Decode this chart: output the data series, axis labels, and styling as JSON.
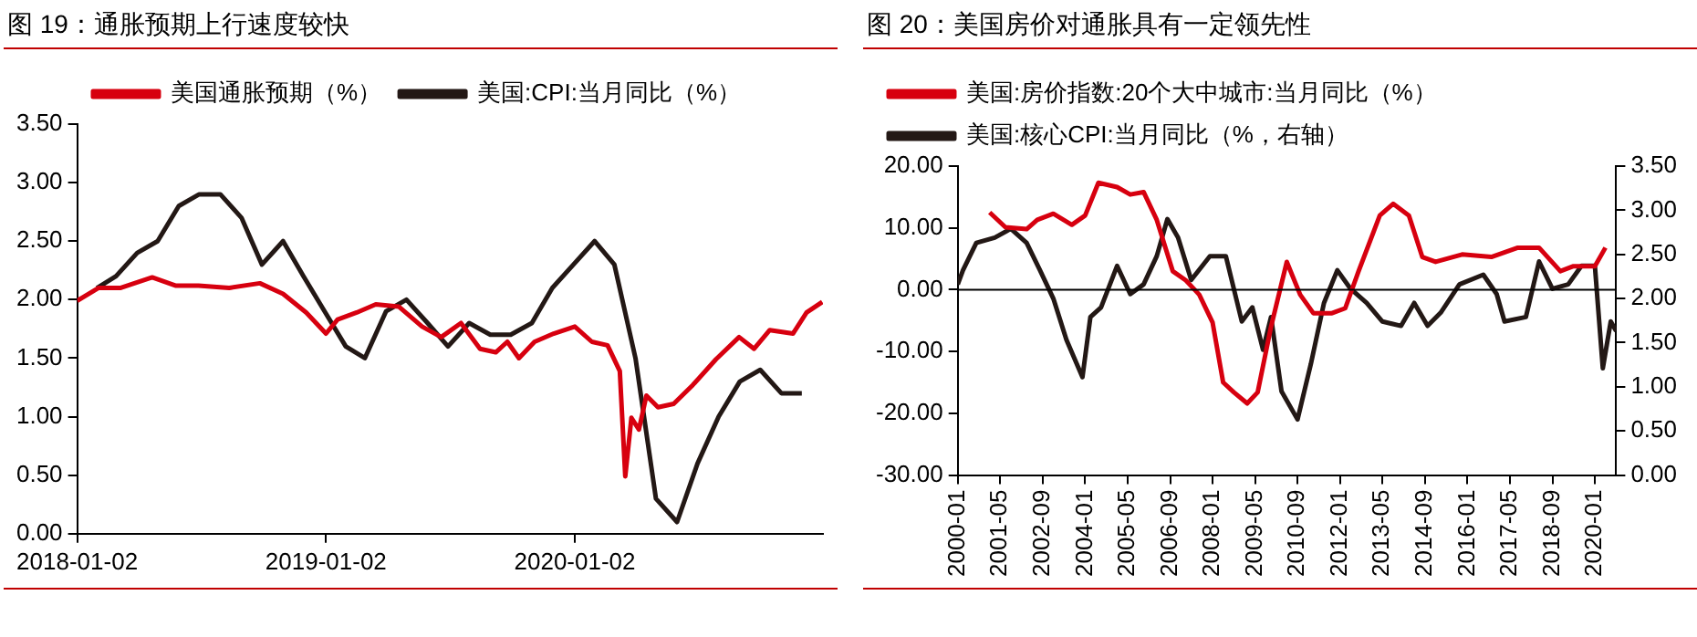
{
  "chart_data": [
    {
      "type": "line",
      "title": "图 19：通胀预期上行速度较快",
      "legend": "top",
      "marker": "none",
      "xlim": [
        "2018-01-02",
        "2020-12-31"
      ],
      "xticks": [
        "2018-01-02",
        "2019-01-02",
        "2020-01-02"
      ],
      "ylim": [
        0,
        3.5
      ],
      "yticks": [
        {
          "value": 0,
          "label": "0.00"
        },
        {
          "value": 0.5,
          "label": "0.50"
        },
        {
          "value": 1,
          "label": "1.00"
        },
        {
          "value": 1.5,
          "label": "1.50"
        },
        {
          "value": 2,
          "label": "2.00"
        },
        {
          "value": 2.5,
          "label": "2.50"
        },
        {
          "value": 3,
          "label": "3.00"
        },
        {
          "value": 3.5,
          "label": "3.50"
        }
      ],
      "series": [
        {
          "name": "美国通胀预期（%）",
          "color": "#d7000f",
          "x": [
            "2018-01-02",
            "2018-02-02",
            "2018-03-06",
            "2018-04-22",
            "2018-05-26",
            "2018-06-29",
            "2018-08-13",
            "2018-09-27",
            "2018-10-31",
            "2018-12-04",
            "2019-01-02",
            "2019-01-19",
            "2019-02-16",
            "2019-03-16",
            "2019-04-19",
            "2019-05-23",
            "2019-06-20",
            "2019-07-19",
            "2019-08-16",
            "2019-09-08",
            "2019-09-25",
            "2019-10-12",
            "2019-11-04",
            "2019-12-02",
            "2020-01-02",
            "2020-01-27",
            "2020-02-19",
            "2020-03-08",
            "2020-03-16",
            "2020-03-25",
            "2020-04-05",
            "2020-04-16",
            "2020-05-03",
            "2020-05-26",
            "2020-06-23",
            "2020-07-27",
            "2020-08-30",
            "2020-09-21",
            "2020-10-14",
            "2020-11-17",
            "2020-12-07",
            "2020-12-30"
          ],
          "values": [
            1.99,
            2.1,
            2.1,
            2.19,
            2.12,
            2.12,
            2.1,
            2.14,
            2.05,
            1.89,
            1.71,
            1.83,
            1.89,
            1.96,
            1.94,
            1.77,
            1.68,
            1.8,
            1.58,
            1.55,
            1.64,
            1.5,
            1.64,
            1.71,
            1.77,
            1.64,
            1.61,
            1.39,
            0.49,
            0.99,
            0.89,
            1.18,
            1.08,
            1.11,
            1.27,
            1.49,
            1.68,
            1.58,
            1.74,
            1.71,
            1.89,
            1.98
          ]
        },
        {
          "name": "美国:CPI:当月同比（%）",
          "color": "#231815",
          "x": [
            "2018-01-31",
            "2018-02-28",
            "2018-03-31",
            "2018-04-30",
            "2018-05-31",
            "2018-06-30",
            "2018-07-31",
            "2018-08-31",
            "2018-09-30",
            "2018-10-31",
            "2018-11-30",
            "2018-12-31",
            "2019-01-31",
            "2019-02-28",
            "2019-03-31",
            "2019-04-30",
            "2019-05-31",
            "2019-06-30",
            "2019-07-31",
            "2019-08-31",
            "2019-09-30",
            "2019-10-31",
            "2019-11-30",
            "2019-12-31",
            "2020-01-31",
            "2020-02-29",
            "2020-03-31",
            "2020-04-30",
            "2020-05-31",
            "2020-06-30",
            "2020-07-31",
            "2020-08-31",
            "2020-09-30",
            "2020-10-31",
            "2020-11-30"
          ],
          "values": [
            2.1,
            2.2,
            2.4,
            2.5,
            2.8,
            2.9,
            2.9,
            2.7,
            2.3,
            2.5,
            2.2,
            1.9,
            1.6,
            1.5,
            1.9,
            2.0,
            1.8,
            1.6,
            1.8,
            1.7,
            1.7,
            1.8,
            2.1,
            2.3,
            2.5,
            2.3,
            1.5,
            0.3,
            0.1,
            0.6,
            1.0,
            1.3,
            1.4,
            1.2,
            1.2
          ]
        }
      ]
    },
    {
      "type": "line",
      "title": "图 20：美国房价对通胀具有一定领先性",
      "legend": "top left",
      "marker": "none",
      "xlim": [
        "2000-01",
        "2020-09"
      ],
      "xticks": [
        "2000-01",
        "2001-05",
        "2002-09",
        "2004-01",
        "2005-05",
        "2006-09",
        "2008-01",
        "2009-05",
        "2010-09",
        "2012-01",
        "2013-05",
        "2014-09",
        "2016-01",
        "2017-05",
        "2018-09",
        "2020-01"
      ],
      "ylim": [
        -30,
        20
      ],
      "yticks": [
        {
          "value": -30,
          "label": "-30.00"
        },
        {
          "value": -20,
          "label": "-20.00"
        },
        {
          "value": -10,
          "label": "-10.00"
        },
        {
          "value": 0,
          "label": "0.00"
        },
        {
          "value": 10,
          "label": "10.00"
        },
        {
          "value": 20,
          "label": "20.00"
        }
      ],
      "y2lim": [
        0,
        3.5
      ],
      "y2ticks": [
        {
          "value": 0,
          "label": "0.00"
        },
        {
          "value": 0.5,
          "label": "0.50"
        },
        {
          "value": 1,
          "label": "1.00"
        },
        {
          "value": 1.5,
          "label": "1.50"
        },
        {
          "value": 2,
          "label": "2.00"
        },
        {
          "value": 2.5,
          "label": "2.50"
        },
        {
          "value": 3,
          "label": "3.00"
        },
        {
          "value": 3.5,
          "label": "3.50"
        }
      ],
      "ref_lines": [
        {
          "axis": "y",
          "value": 0,
          "color": "#000000"
        }
      ],
      "series": [
        {
          "name": "美国:房价指数:20个大中城市:当月同比（%）",
          "color": "#d7000f",
          "x": [
            "2001-01",
            "2001-07",
            "2002-03",
            "2002-07",
            "2003-01",
            "2003-08",
            "2004-01",
            "2004-06",
            "2005-01",
            "2005-06",
            "2005-11",
            "2006-04",
            "2006-10",
            "2007-03",
            "2007-08",
            "2008-01",
            "2008-05",
            "2008-09",
            "2009-02",
            "2009-06",
            "2009-11",
            "2010-05",
            "2010-10",
            "2011-03",
            "2011-10",
            "2012-03",
            "2012-08",
            "2013-04",
            "2013-09",
            "2014-03",
            "2014-08",
            "2015-01",
            "2015-11",
            "2016-10",
            "2017-08",
            "2018-04",
            "2018-12",
            "2019-05",
            "2020-01",
            "2020-05"
          ],
          "values": [
            12.5,
            10.1,
            9.8,
            11.3,
            12.3,
            10.5,
            12,
            17.3,
            16.6,
            15.4,
            15.8,
            11.3,
            3,
            1.5,
            -0.8,
            -5.3,
            -15,
            -16.6,
            -18.4,
            -16.6,
            -6,
            4.5,
            -0.8,
            -3.8,
            -3.8,
            -3,
            3,
            12,
            13.9,
            12,
            5.3,
            4.5,
            5.7,
            5.3,
            6.8,
            6.8,
            3,
            3.8,
            3.8,
            6.8
          ]
        },
        {
          "name": "美国:核心CPI:当月同比（%，右轴）",
          "color": "#231815",
          "axis": "y2",
          "x": [
            "2000-01",
            "2000-03",
            "2000-08",
            "2001-03",
            "2001-09",
            "2002-03",
            "2002-08",
            "2003-01",
            "2003-06",
            "2003-12",
            "2004-03",
            "2004-07",
            "2005-01",
            "2005-06",
            "2005-11",
            "2006-04",
            "2006-08",
            "2006-12",
            "2007-05",
            "2007-12",
            "2008-06",
            "2008-12",
            "2009-04",
            "2009-08",
            "2009-11",
            "2010-03",
            "2010-09",
            "2011-02",
            "2011-07",
            "2011-12",
            "2012-05",
            "2012-11",
            "2013-05",
            "2013-12",
            "2014-05",
            "2014-10",
            "2015-03",
            "2015-10",
            "2016-07",
            "2016-12",
            "2017-03",
            "2017-11",
            "2018-04",
            "2018-09",
            "2019-03",
            "2019-08",
            "2020-01",
            "2020-04",
            "2020-07",
            "2020-09"
          ],
          "values": [
            2.16,
            2.32,
            2.63,
            2.69,
            2.79,
            2.63,
            2.32,
            2.0,
            1.53,
            1.11,
            1.79,
            1.9,
            2.37,
            2.05,
            2.16,
            2.48,
            2.9,
            2.69,
            2.21,
            2.48,
            2.48,
            1.74,
            1.9,
            1.42,
            1.79,
            0.95,
            0.63,
            1.26,
            1.95,
            2.32,
            2.11,
            1.95,
            1.74,
            1.69,
            1.95,
            1.69,
            1.84,
            2.16,
            2.27,
            2.05,
            1.74,
            1.79,
            2.42,
            2.11,
            2.16,
            2.37,
            2.37,
            1.21,
            1.74,
            1.63
          ]
        }
      ]
    }
  ]
}
